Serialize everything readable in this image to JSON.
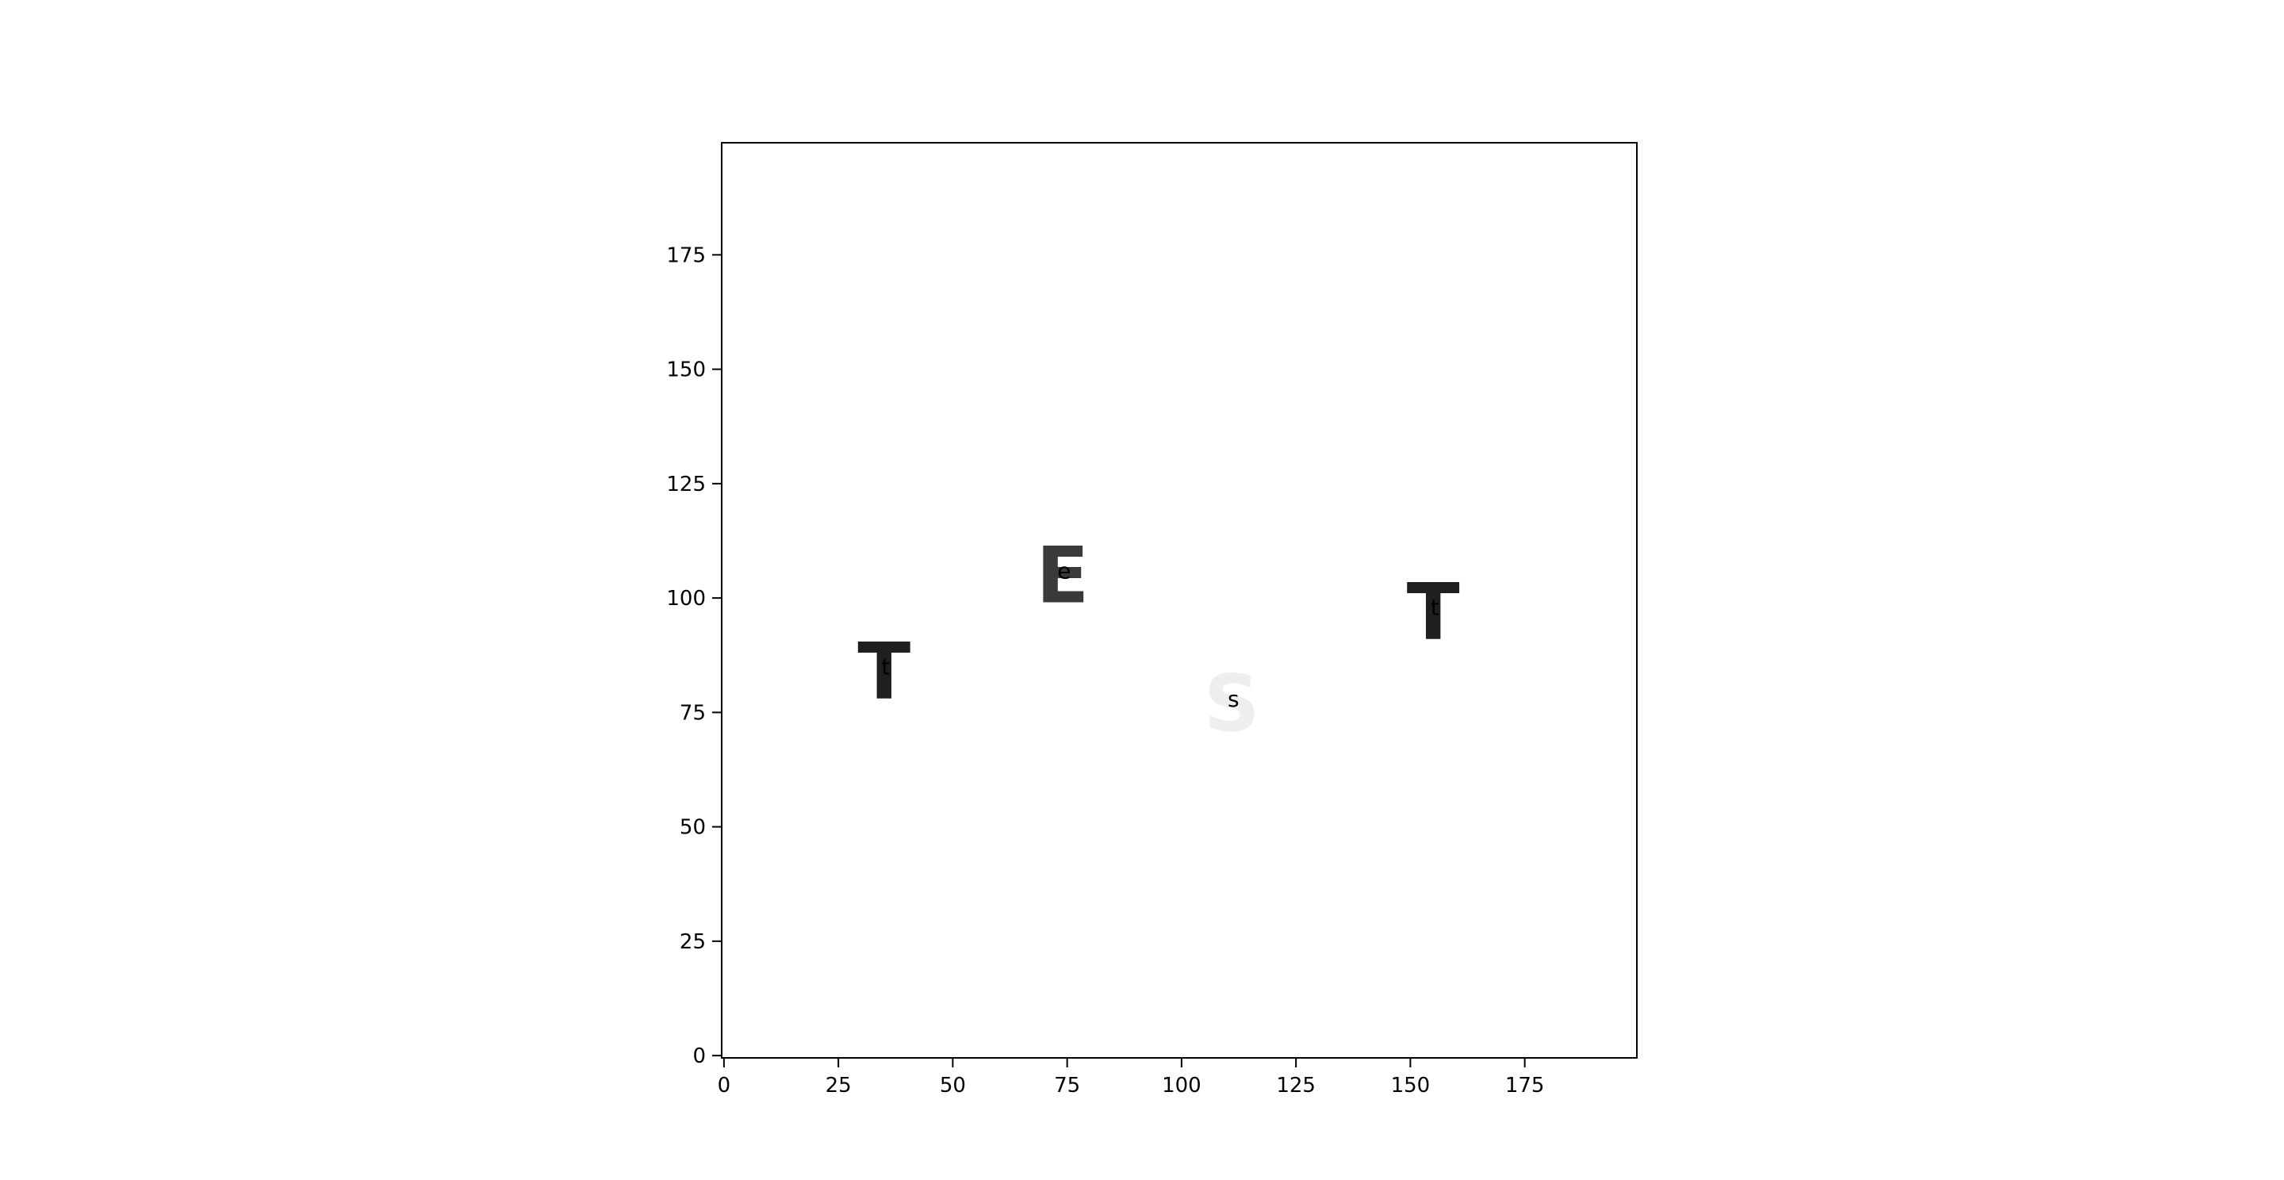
{
  "chart_data": {
    "type": "scatter",
    "title": "",
    "xlabel": "",
    "ylabel": "",
    "xlim": [
      -0.5,
      199.5
    ],
    "ylim": [
      199.5,
      -0.5
    ],
    "y_inverted": true,
    "grid": false,
    "xticks": [
      0,
      25,
      50,
      75,
      100,
      125,
      150,
      175
    ],
    "yticks": [
      0,
      25,
      50,
      75,
      100,
      125,
      150,
      175
    ],
    "xtick_labels": [
      "0",
      "25",
      "50",
      "75",
      "100",
      "125",
      "150",
      "175"
    ],
    "ytick_labels": [
      "0",
      "25",
      "50",
      "75",
      "100",
      "125",
      "150",
      "175"
    ],
    "box_color": "#008000",
    "boxes": [
      {
        "label": "t",
        "glyph": "T",
        "x0": 25,
        "y0": 74,
        "x1": 45,
        "y1": 94,
        "tile": "#ececec",
        "ink": "#1f1f1f"
      },
      {
        "label": "e",
        "glyph": "E",
        "x0": 64,
        "y0": 95,
        "x1": 84,
        "y1": 115,
        "tile": "#e6e6e6",
        "ink": "#3a3a3a"
      },
      {
        "label": "s",
        "glyph": "S",
        "x0": 101,
        "y0": 67,
        "x1": 121,
        "y1": 87,
        "tile": "#2b2b2b",
        "ink": "#eeeeee"
      },
      {
        "label": "t",
        "glyph": "T",
        "x0": 145,
        "y0": 87,
        "x1": 165,
        "y1": 107,
        "tile": "#ececec",
        "ink": "#1f1f1f"
      }
    ]
  }
}
